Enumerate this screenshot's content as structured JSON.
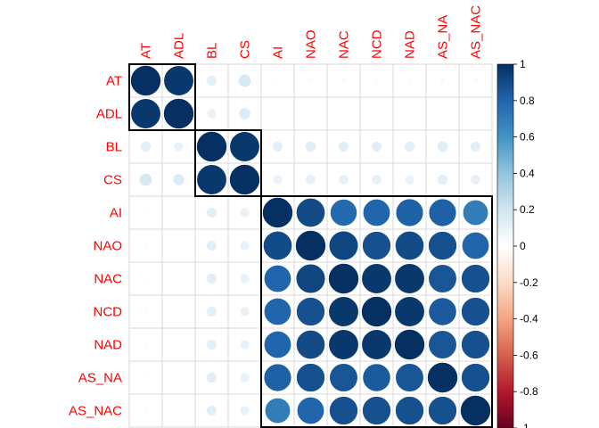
{
  "chart_data": {
    "type": "heatmap",
    "title": "",
    "variables": [
      "AT",
      "ADL",
      "BL",
      "CS",
      "AI",
      "NAO",
      "NAC",
      "NCD",
      "NAD",
      "AS_NA",
      "AS_NAC"
    ],
    "matrix": [
      [
        1.0,
        0.97,
        0.12,
        0.18,
        0.02,
        0.03,
        0.03,
        0.02,
        0.02,
        0.03,
        0.03
      ],
      [
        0.97,
        1.0,
        0.1,
        0.15,
        0.0,
        0.0,
        0.0,
        0.0,
        0.0,
        0.0,
        0.0
      ],
      [
        0.12,
        0.1,
        1.0,
        0.97,
        0.12,
        0.13,
        0.12,
        0.12,
        0.12,
        0.13,
        0.12
      ],
      [
        0.18,
        0.15,
        0.97,
        1.0,
        0.1,
        0.11,
        0.11,
        0.11,
        0.1,
        0.12,
        0.11
      ],
      [
        0.02,
        0.0,
        0.12,
        0.1,
        1.0,
        0.9,
        0.78,
        0.8,
        0.82,
        0.82,
        0.7
      ],
      [
        0.02,
        0.0,
        0.12,
        0.1,
        0.9,
        1.0,
        0.92,
        0.88,
        0.9,
        0.88,
        0.8
      ],
      [
        0.02,
        0.0,
        0.12,
        0.1,
        0.8,
        0.92,
        1.0,
        0.97,
        0.97,
        0.86,
        0.88
      ],
      [
        0.02,
        0.0,
        0.12,
        0.1,
        0.8,
        0.88,
        0.97,
        1.0,
        0.97,
        0.84,
        0.88
      ],
      [
        0.02,
        0.0,
        0.12,
        0.1,
        0.8,
        0.9,
        0.97,
        0.97,
        1.0,
        0.86,
        0.88
      ],
      [
        0.02,
        0.0,
        0.12,
        0.1,
        0.82,
        0.88,
        0.86,
        0.84,
        0.86,
        1.0,
        0.88
      ],
      [
        0.02,
        0.01,
        0.12,
        0.1,
        0.7,
        0.8,
        0.88,
        0.88,
        0.88,
        0.88,
        1.0
      ]
    ],
    "clusters": [
      {
        "members": [
          "AT",
          "ADL"
        ]
      },
      {
        "members": [
          "BL",
          "CS"
        ]
      },
      {
        "members": [
          "AI",
          "NAO",
          "NAC",
          "NCD",
          "NAD",
          "AS_NA",
          "AS_NAC"
        ]
      }
    ],
    "colorbar": {
      "range": [
        -1,
        1
      ],
      "ticks": [
        "1",
        "0.8",
        "0.6",
        "0.4",
        "0.2",
        "0",
        "-0.2",
        "-0.4",
        "-0.6",
        "-0.8",
        "-1"
      ],
      "colors": [
        "#67001f",
        "#b2182b",
        "#d6604d",
        "#f4a582",
        "#fddbc7",
        "#ffffff",
        "#d1e5f0",
        "#92c5de",
        "#4393c3",
        "#2166ac",
        "#053061"
      ]
    },
    "label_color": "#ff0000",
    "grid": true,
    "legend_position": "right"
  }
}
